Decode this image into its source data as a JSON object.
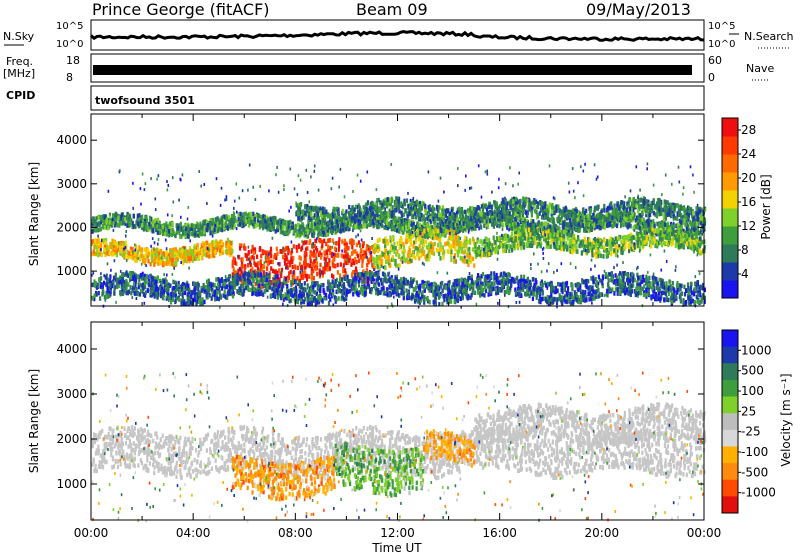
{
  "header": {
    "station": "Prince George (fitACF)",
    "beam": "Beam 09",
    "date": "09/May/2013"
  },
  "top_panels": {
    "nsky_label": "N.Sky",
    "nsearch_label": "N.Search",
    "noise_ticks": [
      "10^5",
      "10^0"
    ],
    "freq_label": "Freq.",
    "freq_unit": "[MHz]",
    "freq_ticks": [
      "18",
      "8"
    ],
    "nave_label": "Nave",
    "nave_ticks": [
      "60",
      "0"
    ],
    "cpid_label": "CPID",
    "cpid_value": "twofsound 3501"
  },
  "legend_colors": {
    "power": [
      "#1a14f0",
      "#1c3aa8",
      "#2f7a5a",
      "#3e9e3e",
      "#7fd02a",
      "#f2d200",
      "#ff9a00",
      "#ff6a00",
      "#ff3a00",
      "#ee1010"
    ],
    "velocity": [
      "#e01010",
      "#ff4a00",
      "#ff8a10",
      "#ffb000",
      "#d8d8d8",
      "#bdbdbd",
      "#7fd02a",
      "#3e9e3e",
      "#2f7a5a",
      "#1c3aa8",
      "#1a14f0"
    ],
    "ground_scatter": "#c6c6c6"
  },
  "chart_data": [
    {
      "type": "heatmap",
      "title": "",
      "quantity": "Power",
      "ylabel": "Slant Range [km]",
      "yticks": [
        1000,
        2000,
        3000,
        4000
      ],
      "ylim": [
        200,
        4600
      ],
      "xlim_hours": [
        0,
        24
      ],
      "xticks": [
        "00:00",
        "04:00",
        "08:00",
        "12:00",
        "16:00",
        "20:00",
        "00:00"
      ],
      "colorbar_label": "Power [dB]",
      "colorbar_ticks": [
        4,
        8,
        12,
        16,
        20,
        24,
        28
      ],
      "colorbar_range": [
        0,
        30
      ],
      "bands": [
        {
          "t0": 0,
          "t1": 24,
          "r0": 1950,
          "r1": 2250,
          "level": 9
        },
        {
          "t0": 0,
          "t1": 5.5,
          "r0": 1300,
          "r1": 1650,
          "level": 18
        },
        {
          "t0": 5.5,
          "t1": 11,
          "r0": 800,
          "r1": 1700,
          "level": 26
        },
        {
          "t0": 11,
          "t1": 15,
          "r0": 1200,
          "r1": 1900,
          "level": 16
        },
        {
          "t0": 15,
          "t1": 24,
          "r0": 1500,
          "r1": 1900,
          "level": 12
        },
        {
          "t0": 8,
          "t1": 24,
          "r0": 2200,
          "r1": 2600,
          "level": 8
        },
        {
          "t0": 0,
          "t1": 24,
          "r0": 400,
          "r1": 900,
          "level": 6
        }
      ]
    },
    {
      "type": "heatmap",
      "title": "",
      "quantity": "Velocity",
      "ylabel": "Slant Range [km]",
      "yticks": [
        1000,
        2000,
        3000,
        4000
      ],
      "ylim": [
        200,
        4600
      ],
      "xlim_hours": [
        0,
        24
      ],
      "xticks": [
        "00:00",
        "04:00",
        "08:00",
        "12:00",
        "16:00",
        "20:00",
        "00:00"
      ],
      "xlabel": "Time UT",
      "colorbar_label": "Velocity [m s⁻¹]",
      "colorbar_ticks": [
        1000,
        500,
        100,
        25,
        -25,
        -100,
        -500,
        -1000
      ],
      "colorbar_range": [
        -1000,
        1000
      ],
      "bands": [
        {
          "t0": 0,
          "t1": 24,
          "r0": 1300,
          "r1": 2200,
          "level": 0
        },
        {
          "t0": 5.5,
          "t1": 9.5,
          "r0": 800,
          "r1": 1600,
          "level": -500
        },
        {
          "t0": 9.5,
          "t1": 13,
          "r0": 900,
          "r1": 1900,
          "level": 300
        },
        {
          "t0": 13,
          "t1": 15,
          "r0": 1500,
          "r1": 2100,
          "level": -400
        },
        {
          "t0": 15,
          "t1": 24,
          "r0": 2000,
          "r1": 2700,
          "level": 0
        }
      ]
    }
  ]
}
